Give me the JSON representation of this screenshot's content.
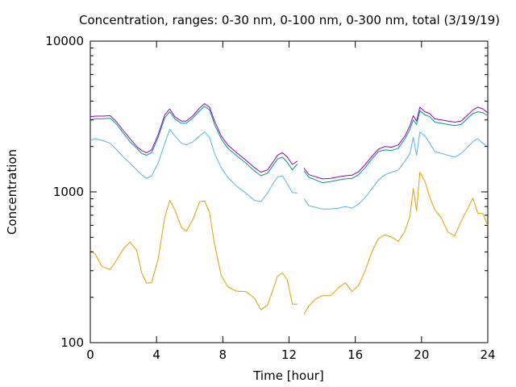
{
  "chart_data": {
    "type": "line",
    "title": "Concentration, ranges: 0-30 nm, 0-100 nm, 0-300 nm, total (3/19/19)",
    "xlabel": "Time [hour]",
    "ylabel": "Concentration",
    "xlim": [
      0,
      24
    ],
    "ylim": [
      100,
      10000
    ],
    "yscale": "log",
    "grid": false,
    "legend": "none",
    "xticks": [
      0,
      4,
      8,
      12,
      16,
      20,
      24
    ],
    "xtick_labels": [
      "0",
      "4",
      "8",
      "12",
      "16",
      "20",
      "24"
    ],
    "yticks": [
      100,
      1000,
      10000
    ],
    "ytick_labels": [
      "100",
      "1000",
      "10000"
    ],
    "gap": [
      12.5,
      12.9
    ],
    "series": [
      {
        "color": "#e69f00",
        "x": [
          0,
          0.3,
          0.7,
          1.2,
          1.6,
          2.0,
          2.4,
          2.8,
          3.1,
          3.4,
          3.7,
          4.1,
          4.5,
          4.8,
          5.1,
          5.5,
          5.8,
          6.2,
          6.6,
          6.9,
          7.2,
          7.5,
          7.9,
          8.3,
          8.8,
          9.4,
          9.9,
          10.3,
          10.7,
          11.0,
          11.3,
          11.6,
          11.9,
          12.2,
          12.5,
          12.9,
          13.2,
          13.6,
          14.0,
          14.5,
          15.0,
          15.4,
          15.8,
          16.2,
          16.6,
          17.0,
          17.4,
          17.8,
          18.2,
          18.6,
          19.0,
          19.3,
          19.5,
          19.7,
          19.9,
          20.2,
          20.5,
          20.8,
          21.2,
          21.6,
          22.0,
          22.4,
          22.8,
          23.1,
          23.4,
          23.7,
          24.0
        ],
        "values": [
          410,
          385,
          320,
          305,
          355,
          420,
          465,
          410,
          290,
          248,
          250,
          360,
          680,
          880,
          760,
          580,
          550,
          660,
          860,
          870,
          730,
          450,
          280,
          235,
          220,
          218,
          198,
          165,
          178,
          220,
          275,
          290,
          260,
          180,
          180,
          155,
          175,
          195,
          205,
          205,
          232,
          250,
          218,
          240,
          300,
          400,
          490,
          520,
          500,
          470,
          550,
          690,
          1050,
          750,
          1350,
          1180,
          920,
          760,
          670,
          540,
          510,
          640,
          780,
          910,
          720,
          720,
          600
        ]
      },
      {
        "color": "#56b4e9",
        "x": [
          0,
          0.3,
          0.7,
          1.2,
          1.6,
          2.0,
          2.4,
          2.8,
          3.1,
          3.4,
          3.7,
          4.1,
          4.5,
          4.8,
          5.1,
          5.5,
          5.8,
          6.2,
          6.6,
          6.9,
          7.2,
          7.5,
          7.9,
          8.3,
          8.8,
          9.4,
          9.9,
          10.3,
          10.7,
          11.0,
          11.3,
          11.6,
          11.9,
          12.2,
          12.5,
          12.9,
          13.2,
          13.6,
          14.0,
          14.5,
          15.0,
          15.4,
          15.8,
          16.2,
          16.6,
          17.0,
          17.4,
          17.8,
          18.2,
          18.6,
          19.0,
          19.3,
          19.5,
          19.7,
          19.9,
          20.2,
          20.5,
          20.8,
          21.2,
          21.6,
          22.0,
          22.4,
          22.8,
          23.1,
          23.4,
          23.7,
          24.0
        ],
        "values": [
          2200,
          2250,
          2200,
          2100,
          1900,
          1700,
          1550,
          1400,
          1300,
          1230,
          1280,
          1550,
          2100,
          2600,
          2350,
          2100,
          2050,
          2150,
          2350,
          2500,
          2300,
          1800,
          1450,
          1250,
          1100,
          980,
          880,
          860,
          980,
          1120,
          1250,
          1280,
          1130,
          990,
          980,
          900,
          810,
          790,
          770,
          770,
          780,
          800,
          780,
          830,
          920,
          1050,
          1200,
          1300,
          1350,
          1400,
          1600,
          1800,
          2300,
          1750,
          2500,
          2350,
          2100,
          1850,
          1800,
          1750,
          1700,
          1800,
          2000,
          2150,
          2250,
          2100,
          1980
        ]
      },
      {
        "color": "#009e73",
        "x": [
          0,
          0.3,
          0.7,
          1.2,
          1.6,
          2.0,
          2.4,
          2.8,
          3.1,
          3.4,
          3.7,
          4.1,
          4.5,
          4.8,
          5.1,
          5.5,
          5.8,
          6.2,
          6.6,
          6.9,
          7.2,
          7.5,
          7.9,
          8.3,
          8.8,
          9.4,
          9.9,
          10.3,
          10.7,
          11.0,
          11.3,
          11.6,
          11.9,
          12.2,
          12.5,
          12.9,
          13.2,
          13.6,
          14.0,
          14.5,
          15.0,
          15.4,
          15.8,
          16.2,
          16.6,
          17.0,
          17.4,
          17.8,
          18.2,
          18.6,
          19.0,
          19.3,
          19.5,
          19.7,
          19.9,
          20.2,
          20.5,
          20.8,
          21.2,
          21.6,
          22.0,
          22.4,
          22.8,
          23.1,
          23.4,
          23.7,
          24.0
        ],
        "values": [
          3000,
          3050,
          3050,
          3080,
          2800,
          2450,
          2150,
          1950,
          1800,
          1750,
          1820,
          2300,
          3100,
          3400,
          3050,
          2850,
          2850,
          3100,
          3450,
          3700,
          3500,
          2800,
          2250,
          1950,
          1750,
          1550,
          1380,
          1280,
          1330,
          1480,
          1650,
          1700,
          1570,
          1400,
          1530,
          1380,
          1250,
          1200,
          1150,
          1170,
          1200,
          1220,
          1230,
          1300,
          1450,
          1650,
          1850,
          1900,
          1880,
          1950,
          2250,
          2600,
          3000,
          2800,
          3450,
          3250,
          3150,
          2900,
          2850,
          2800,
          2750,
          2800,
          3100,
          3300,
          3400,
          3350,
          3200
        ]
      },
      {
        "color": "#9400d3",
        "x": [
          0,
          0.3,
          0.7,
          1.2,
          1.6,
          2.0,
          2.4,
          2.8,
          3.1,
          3.4,
          3.7,
          4.1,
          4.5,
          4.8,
          5.1,
          5.5,
          5.8,
          6.2,
          6.6,
          6.9,
          7.2,
          7.5,
          7.9,
          8.3,
          8.8,
          9.4,
          9.9,
          10.3,
          10.7,
          11.0,
          11.3,
          11.6,
          11.9,
          12.2,
          12.5,
          12.9,
          13.2,
          13.6,
          14.0,
          14.5,
          15.0,
          15.4,
          15.8,
          16.2,
          16.6,
          17.0,
          17.4,
          17.8,
          18.2,
          18.6,
          19.0,
          19.3,
          19.5,
          19.7,
          19.9,
          20.2,
          20.5,
          20.8,
          21.2,
          21.6,
          22.0,
          22.4,
          22.8,
          23.1,
          23.4,
          23.7,
          24.0
        ],
        "values": [
          3150,
          3180,
          3180,
          3200,
          2900,
          2550,
          2250,
          2000,
          1880,
          1820,
          1900,
          2400,
          3250,
          3550,
          3150,
          2950,
          2950,
          3200,
          3600,
          3850,
          3650,
          2950,
          2350,
          2050,
          1830,
          1620,
          1450,
          1350,
          1400,
          1560,
          1750,
          1820,
          1700,
          1520,
          1600,
          1440,
          1300,
          1260,
          1220,
          1230,
          1260,
          1280,
          1290,
          1360,
          1520,
          1720,
          1920,
          2000,
          1980,
          2050,
          2350,
          2750,
          3200,
          2950,
          3650,
          3400,
          3300,
          3050,
          3000,
          2950,
          2900,
          2950,
          3250,
          3500,
          3650,
          3550,
          3350
        ]
      }
    ]
  }
}
